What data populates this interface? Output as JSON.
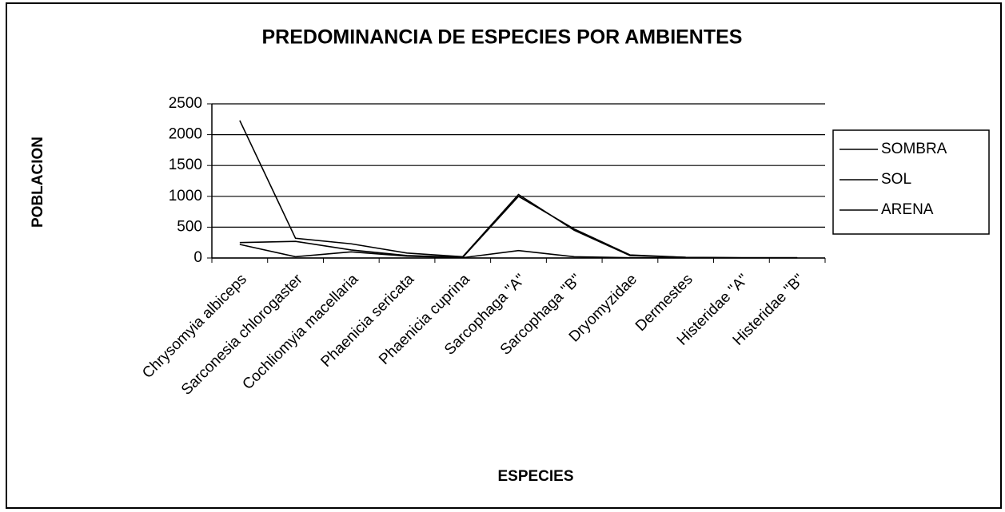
{
  "chart_data": {
    "type": "line",
    "title": "PREDOMINANCIA DE ESPECIES POR AMBIENTES",
    "x_label": "ESPECIES",
    "y_label": "POBLACION",
    "categories": [
      "Chrysomyia albiceps",
      "Sarconesia chlorogaster",
      "Cochliomyia macellaria",
      "Phaenicia sericata",
      "Phaenicia cuprina",
      "Sarcophaga \"A\"",
      "Sarcophaga \"B\"",
      "Dryomyzidae",
      "Dermestes",
      "Histeridae \"A\"",
      "Histeridae \"B\""
    ],
    "series": [
      {
        "name": "SOMBRA",
        "color": "#000000",
        "values": [
          2230,
          320,
          230,
          80,
          20,
          1030,
          450,
          40,
          10,
          5,
          5
        ]
      },
      {
        "name": "SOL",
        "color": "#000000",
        "values": [
          250,
          270,
          130,
          40,
          10,
          1000,
          470,
          50,
          10,
          5,
          5
        ]
      },
      {
        "name": "ARENA",
        "color": "#000000",
        "values": [
          220,
          20,
          100,
          30,
          5,
          120,
          20,
          5,
          2,
          2,
          2
        ]
      }
    ],
    "ylim": [
      0,
      2500
    ],
    "yticks": [
      0,
      500,
      1000,
      1500,
      2000,
      2500
    ],
    "grid": true,
    "legend": "right"
  }
}
